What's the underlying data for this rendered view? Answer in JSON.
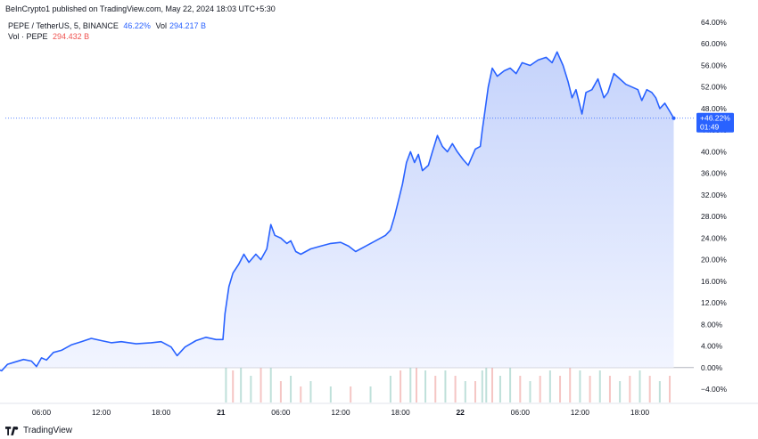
{
  "caption": "BeInCrypto1 published on TradingView.com, May 22, 2024 18:03 UTC+5:30",
  "legend": {
    "symbol": "PEPE / TetherUS, 5, BINANCE",
    "change": "46.22%",
    "vol_label": "Vol",
    "vol_value": "294.217 B",
    "vol_series_label": "Vol · PEPE",
    "vol_series_value": "294.432 B"
  },
  "price_badge": {
    "change": "+46.22%",
    "countdown": "01:49"
  },
  "footer": {
    "brand": "TradingView"
  },
  "colors": {
    "line": "#2962ff",
    "area_top": "#c5d3fb",
    "area_bottom": "#f2f5ff",
    "vol_up": "#bfe0da",
    "vol_down": "#f5c6c4",
    "zero_line": "#b2b5be",
    "badge": "#2962ff"
  },
  "chart_data": {
    "type": "area",
    "title": "",
    "xlabel": "",
    "ylabel": "",
    "ylim": [
      -5,
      64
    ],
    "y_ticks": [
      {
        "label": "64.00%",
        "value": 64
      },
      {
        "label": "60.00%",
        "value": 60
      },
      {
        "label": "56.00%",
        "value": 56
      },
      {
        "label": "52.00%",
        "value": 52
      },
      {
        "label": "48.00%",
        "value": 48
      },
      {
        "label": "44.00%",
        "value": 44
      },
      {
        "label": "40.00%",
        "value": 40
      },
      {
        "label": "36.00%",
        "value": 36
      },
      {
        "label": "32.00%",
        "value": 32
      },
      {
        "label": "28.00%",
        "value": 28
      },
      {
        "label": "24.00%",
        "value": 24
      },
      {
        "label": "20.00%",
        "value": 20
      },
      {
        "label": "16.00%",
        "value": 16
      },
      {
        "label": "12.00%",
        "value": 12
      },
      {
        "label": "8.00%",
        "value": 8
      },
      {
        "label": "4.00%",
        "value": 4
      },
      {
        "label": "0.00%",
        "value": 0
      },
      {
        "label": "−4.00%",
        "value": -4
      }
    ],
    "x_ticks": [
      {
        "label": "06:00",
        "t": 6
      },
      {
        "label": "12:00",
        "t": 12
      },
      {
        "label": "18:00",
        "t": 18
      },
      {
        "label": "21",
        "t": 24,
        "bold": true
      },
      {
        "label": "06:00",
        "t": 30
      },
      {
        "label": "12:00",
        "t": 36
      },
      {
        "label": "18:00",
        "t": 42
      },
      {
        "label": "22",
        "t": 48,
        "bold": true
      },
      {
        "label": "06:00",
        "t": 54
      },
      {
        "label": "12:00",
        "t": 60
      },
      {
        "label": "18:00",
        "t": 66
      }
    ],
    "x_range": [
      1.2,
      72.6
    ],
    "series": [
      {
        "values": [
          [
            1.2,
            0.0
          ],
          [
            2.0,
            -0.6
          ],
          [
            2.6,
            0.6
          ],
          [
            3.3,
            1.0
          ],
          [
            4.2,
            1.5
          ],
          [
            5.0,
            1.2
          ],
          [
            5.5,
            0.2
          ],
          [
            6.0,
            1.8
          ],
          [
            6.5,
            1.4
          ],
          [
            7.2,
            2.8
          ],
          [
            8.0,
            3.2
          ],
          [
            9.0,
            4.2
          ],
          [
            10.0,
            4.8
          ],
          [
            11.0,
            5.4
          ],
          [
            12.0,
            5.0
          ],
          [
            13.0,
            4.6
          ],
          [
            14.0,
            4.8
          ],
          [
            15.5,
            4.4
          ],
          [
            17.0,
            4.6
          ],
          [
            18.0,
            4.8
          ],
          [
            19.0,
            3.8
          ],
          [
            19.6,
            2.2
          ],
          [
            20.4,
            3.8
          ],
          [
            21.5,
            5.0
          ],
          [
            22.5,
            5.6
          ],
          [
            23.5,
            5.2
          ],
          [
            24.2,
            5.2
          ],
          [
            24.4,
            10.0
          ],
          [
            24.8,
            15.0
          ],
          [
            25.2,
            17.5
          ],
          [
            25.8,
            19.2
          ],
          [
            26.3,
            21.0
          ],
          [
            26.8,
            19.5
          ],
          [
            27.5,
            21.0
          ],
          [
            28.0,
            20.0
          ],
          [
            28.6,
            22.0
          ],
          [
            29.0,
            26.5
          ],
          [
            29.4,
            24.5
          ],
          [
            30.0,
            24.0
          ],
          [
            30.6,
            23.0
          ],
          [
            31.0,
            23.5
          ],
          [
            31.5,
            21.5
          ],
          [
            32.0,
            21.0
          ],
          [
            33.0,
            22.0
          ],
          [
            34.0,
            22.5
          ],
          [
            35.0,
            23.0
          ],
          [
            36.0,
            23.2
          ],
          [
            36.8,
            22.5
          ],
          [
            37.5,
            21.5
          ],
          [
            38.5,
            22.5
          ],
          [
            39.5,
            23.5
          ],
          [
            40.5,
            24.5
          ],
          [
            41.0,
            25.5
          ],
          [
            41.4,
            28.0
          ],
          [
            41.8,
            31.0
          ],
          [
            42.2,
            34.0
          ],
          [
            42.6,
            38.0
          ],
          [
            43.0,
            40.0
          ],
          [
            43.4,
            38.0
          ],
          [
            43.8,
            39.5
          ],
          [
            44.2,
            36.5
          ],
          [
            44.8,
            37.5
          ],
          [
            45.2,
            40.0
          ],
          [
            45.7,
            43.0
          ],
          [
            46.2,
            41.0
          ],
          [
            46.7,
            40.0
          ],
          [
            47.2,
            41.5
          ],
          [
            47.7,
            40.0
          ],
          [
            48.3,
            38.5
          ],
          [
            48.8,
            37.5
          ],
          [
            49.5,
            40.5
          ],
          [
            50.0,
            41.0
          ],
          [
            50.2,
            44.0
          ],
          [
            50.5,
            48.0
          ],
          [
            50.8,
            52.0
          ],
          [
            51.2,
            55.5
          ],
          [
            51.7,
            54.0
          ],
          [
            52.4,
            55.0
          ],
          [
            53.0,
            55.5
          ],
          [
            53.6,
            54.5
          ],
          [
            54.2,
            56.5
          ],
          [
            55.0,
            56.0
          ],
          [
            55.8,
            57.0
          ],
          [
            56.6,
            57.5
          ],
          [
            57.2,
            56.5
          ],
          [
            57.7,
            58.5
          ],
          [
            58.3,
            56.0
          ],
          [
            58.8,
            53.0
          ],
          [
            59.2,
            50.0
          ],
          [
            59.6,
            51.5
          ],
          [
            60.2,
            47.0
          ],
          [
            60.6,
            51.0
          ],
          [
            61.2,
            51.5
          ],
          [
            61.8,
            53.5
          ],
          [
            62.4,
            50.0
          ],
          [
            62.8,
            51.0
          ],
          [
            63.4,
            54.5
          ],
          [
            64.0,
            53.5
          ],
          [
            64.6,
            52.5
          ],
          [
            65.2,
            52.0
          ],
          [
            65.8,
            51.5
          ],
          [
            66.2,
            49.5
          ],
          [
            66.7,
            51.5
          ],
          [
            67.2,
            51.0
          ],
          [
            67.6,
            50.0
          ],
          [
            68.0,
            48.0
          ],
          [
            68.5,
            49.0
          ],
          [
            69.0,
            47.5
          ],
          [
            69.4,
            46.22
          ]
        ]
      }
    ],
    "last_value": 46.22,
    "volume": {
      "series_name": "Vol · PEPE",
      "bars": [
        [
          24.5,
          1.0,
          "up"
        ],
        [
          25.2,
          0.6,
          "down"
        ],
        [
          26.0,
          0.8,
          "up"
        ],
        [
          27.0,
          0.5,
          "up"
        ],
        [
          28.0,
          0.7,
          "down"
        ],
        [
          29.0,
          0.9,
          "up"
        ],
        [
          30.0,
          0.4,
          "down"
        ],
        [
          31.0,
          0.5,
          "up"
        ],
        [
          32.0,
          0.3,
          "down"
        ],
        [
          33.0,
          0.4,
          "up"
        ],
        [
          35.0,
          0.3,
          "up"
        ],
        [
          37.0,
          0.3,
          "down"
        ],
        [
          39.0,
          0.3,
          "up"
        ],
        [
          41.0,
          0.5,
          "up"
        ],
        [
          42.0,
          0.6,
          "down"
        ],
        [
          43.0,
          0.9,
          "up"
        ],
        [
          43.6,
          0.7,
          "down"
        ],
        [
          44.5,
          0.6,
          "up"
        ],
        [
          45.5,
          0.5,
          "down"
        ],
        [
          46.5,
          0.6,
          "up"
        ],
        [
          47.5,
          0.5,
          "down"
        ],
        [
          48.5,
          0.4,
          "up"
        ],
        [
          49.5,
          0.4,
          "down"
        ],
        [
          50.2,
          0.6,
          "up"
        ],
        [
          50.6,
          0.8,
          "up"
        ],
        [
          51.2,
          0.7,
          "down"
        ],
        [
          52.0,
          0.5,
          "up"
        ],
        [
          53.0,
          0.7,
          "up"
        ],
        [
          54.0,
          0.5,
          "down"
        ],
        [
          55.0,
          0.4,
          "up"
        ],
        [
          56.0,
          0.5,
          "down"
        ],
        [
          57.0,
          0.6,
          "up"
        ],
        [
          58.0,
          0.5,
          "down"
        ],
        [
          59.0,
          0.7,
          "down"
        ],
        [
          60.0,
          0.6,
          "up"
        ],
        [
          61.0,
          0.5,
          "down"
        ],
        [
          62.0,
          0.6,
          "up"
        ],
        [
          63.0,
          0.5,
          "down"
        ],
        [
          64.0,
          0.4,
          "up"
        ],
        [
          65.0,
          0.5,
          "down"
        ],
        [
          66.0,
          0.6,
          "up"
        ],
        [
          67.0,
          0.5,
          "down"
        ],
        [
          68.0,
          0.4,
          "up"
        ],
        [
          69.0,
          0.5,
          "down"
        ]
      ]
    }
  }
}
